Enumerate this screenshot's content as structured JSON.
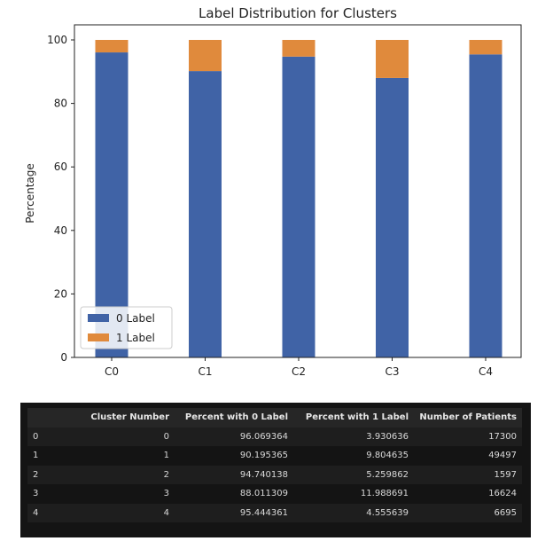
{
  "chart_data": {
    "type": "bar",
    "stacked": true,
    "title": "Label Distribution for Clusters",
    "xlabel": "",
    "ylabel": "Percentage",
    "ylim": [
      0,
      100
    ],
    "yticks": [
      0,
      20,
      40,
      60,
      80,
      100
    ],
    "categories": [
      "C0",
      "C1",
      "C2",
      "C3",
      "C4"
    ],
    "series": [
      {
        "name": "0 Label",
        "color": "#4063a6",
        "values": [
          96.069364,
          90.195365,
          94.740138,
          88.011309,
          95.444361
        ]
      },
      {
        "name": "1 Label",
        "color": "#e08a3c",
        "values": [
          3.930636,
          9.804635,
          5.259862,
          11.988691,
          4.555639
        ]
      }
    ],
    "legend": "lower-left",
    "grid": false
  },
  "table": {
    "columns": [
      "",
      "Cluster Number",
      "Percent with 0 Label",
      "Percent with 1 Label",
      "Number of Patients"
    ],
    "rows": [
      [
        "0",
        "0",
        "96.069364",
        "3.930636",
        "17300"
      ],
      [
        "1",
        "1",
        "90.195365",
        "9.804635",
        "49497"
      ],
      [
        "2",
        "2",
        "94.740138",
        "5.259862",
        "1597"
      ],
      [
        "3",
        "3",
        "88.011309",
        "11.988691",
        "16624"
      ],
      [
        "4",
        "4",
        "95.444361",
        "4.555639",
        "6695"
      ]
    ]
  }
}
